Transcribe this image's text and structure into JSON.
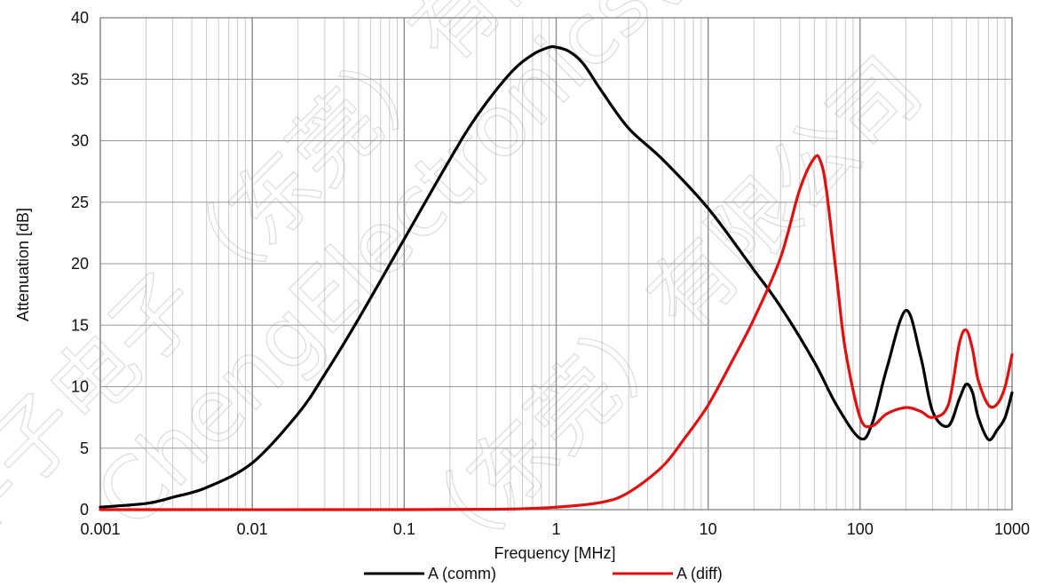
{
  "chart_data": {
    "type": "line",
    "xlabel": "Frequency [MHz]",
    "ylabel": "Attenuation [dB]",
    "xscale": "log",
    "xlim": [
      0.001,
      1000
    ],
    "ylim": [
      0,
      40
    ],
    "grid": true,
    "legend_position": "bottom-center",
    "x_ticks": [
      "0.001",
      "0.01",
      "0.1",
      "1",
      "10",
      "100",
      "1000"
    ],
    "y_ticks": [
      "0",
      "5",
      "10",
      "15",
      "20",
      "25",
      "30",
      "35",
      "40"
    ],
    "series": [
      {
        "name": "A (comm)",
        "color": "#000000",
        "x": [
          0.001,
          0.002,
          0.003,
          0.005,
          0.01,
          0.02,
          0.03,
          0.05,
          0.1,
          0.2,
          0.3,
          0.5,
          0.7,
          0.9,
          1.0,
          1.2,
          1.5,
          2,
          3,
          5,
          10,
          20,
          30,
          50,
          70,
          100,
          120,
          150,
          200,
          250,
          300,
          380,
          450,
          500,
          550,
          600,
          700,
          800,
          900,
          1000
        ],
        "y": [
          0.2,
          0.5,
          1.0,
          1.8,
          3.8,
          7.8,
          11.0,
          15.5,
          22.0,
          28.5,
          32.0,
          35.5,
          37.0,
          37.6,
          37.6,
          37.3,
          36.3,
          34.0,
          31.0,
          28.5,
          24.5,
          19.5,
          16.5,
          12.0,
          8.5,
          5.8,
          7.0,
          11.5,
          16.2,
          12.5,
          8.0,
          6.8,
          9.0,
          10.2,
          9.5,
          7.5,
          5.7,
          6.5,
          7.5,
          9.5
        ]
      },
      {
        "name": "A (diff)",
        "color": "#e01010",
        "x": [
          0.001,
          0.1,
          0.5,
          1,
          2,
          3,
          5,
          7,
          10,
          15,
          20,
          30,
          40,
          50,
          55,
          60,
          70,
          80,
          100,
          120,
          150,
          200,
          250,
          300,
          380,
          450,
          500,
          550,
          600,
          700,
          800,
          900,
          1000
        ],
        "y": [
          0,
          0,
          0.05,
          0.2,
          0.6,
          1.4,
          3.5,
          5.8,
          8.5,
          12.5,
          15.5,
          20.5,
          26.0,
          28.6,
          28.3,
          26.0,
          19.0,
          13.0,
          7.5,
          6.8,
          7.8,
          8.3,
          8.0,
          7.5,
          8.5,
          13.5,
          14.6,
          13.0,
          10.5,
          8.5,
          8.6,
          10.0,
          12.6
        ]
      }
    ]
  },
  "watermark": {
    "lines": [
      "华子电子（东莞）有限公司",
      "ChengElectronics(Dongguan)Co",
      "（东莞）有限公司"
    ]
  }
}
